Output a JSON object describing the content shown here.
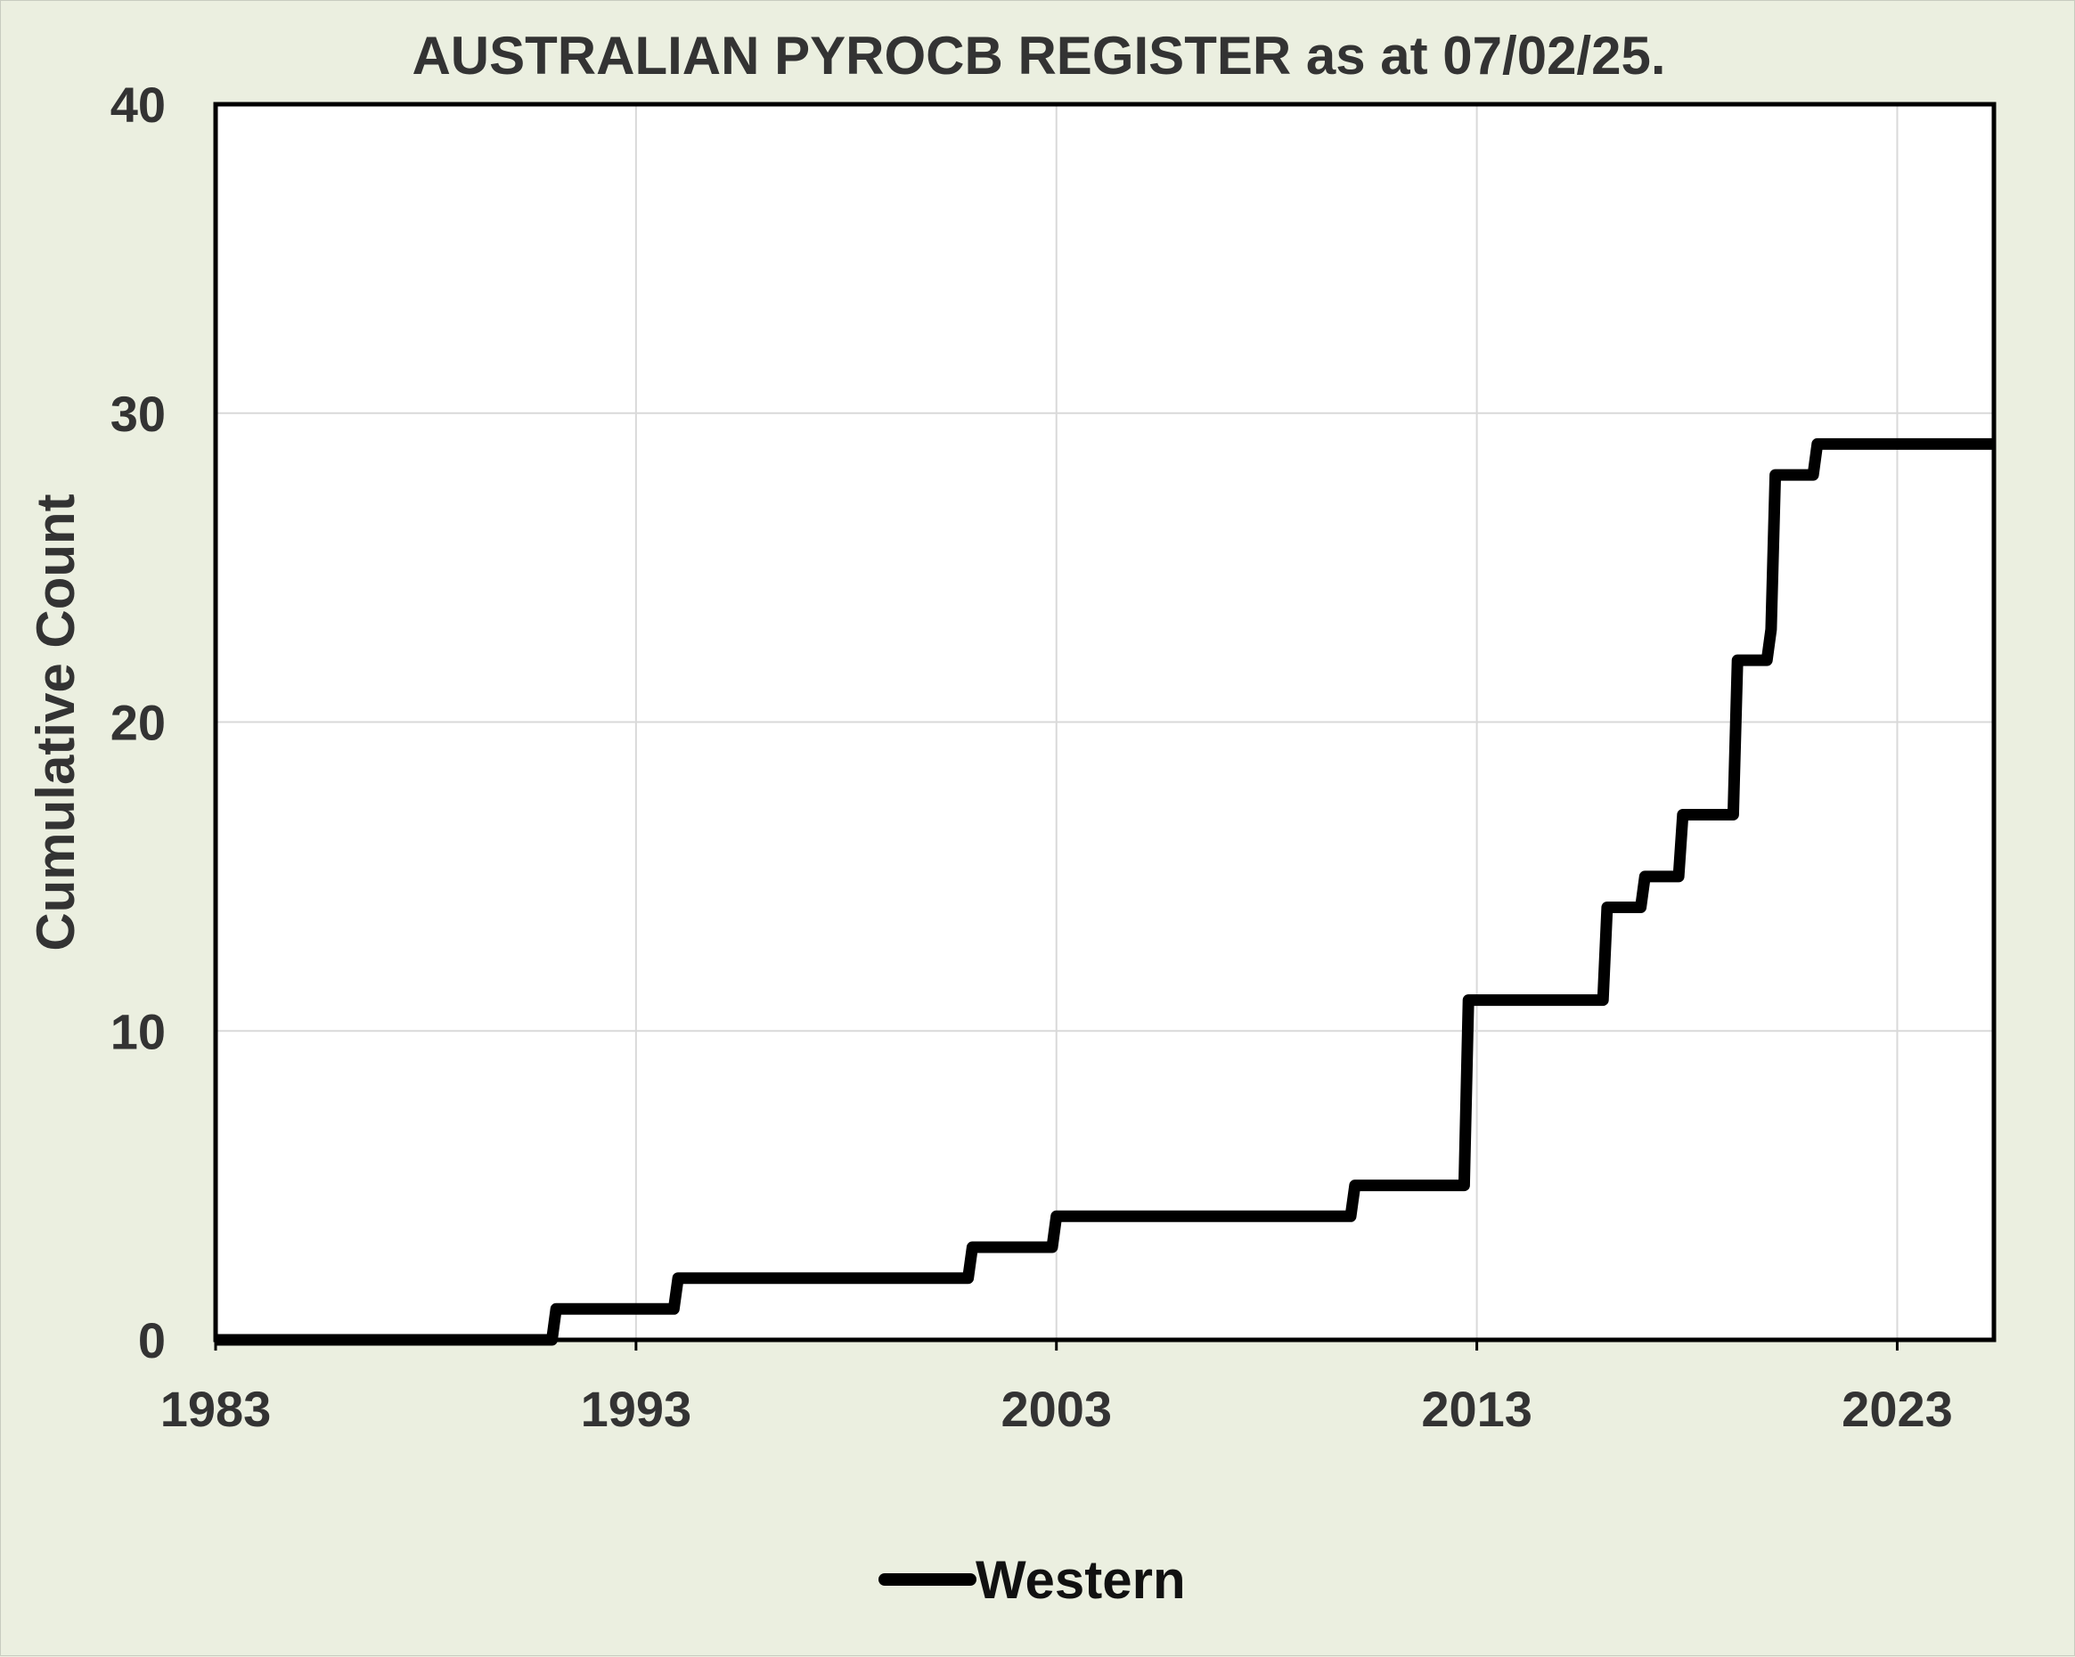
{
  "chart_data": {
    "type": "line",
    "title": "AUSTRALIAN PYROCB REGISTER as at 07/02/25.",
    "xlabel": "",
    "ylabel": "Cumulative Count",
    "xlim": [
      1983,
      2025.3
    ],
    "ylim": [
      0,
      40
    ],
    "x_ticks": [
      "1983",
      "1993",
      "2003",
      "2013",
      "2023"
    ],
    "y_ticks": [
      "0",
      "10",
      "20",
      "30",
      "40"
    ],
    "grid": true,
    "legend_position": "bottom",
    "series": [
      {
        "name": "Western",
        "color": "#000000",
        "x": [
          1983.0,
          1991.0,
          1991.1,
          1993.9,
          1994.0,
          2000.9,
          2001.0,
          2002.9,
          2003.0,
          2010.0,
          2010.1,
          2012.7,
          2012.8,
          2016.0,
          2016.1,
          2016.9,
          2017.0,
          2017.8,
          2017.9,
          2019.1,
          2019.2,
          2019.9,
          2020.0,
          2020.1,
          2021.0,
          2021.1,
          2025.3
        ],
        "y": [
          0,
          0,
          1,
          1,
          2,
          2,
          3,
          3,
          4,
          4,
          5,
          5,
          11,
          11,
          14,
          14,
          15,
          15,
          17,
          17,
          22,
          22,
          23,
          28,
          28,
          29,
          29
        ]
      }
    ]
  }
}
